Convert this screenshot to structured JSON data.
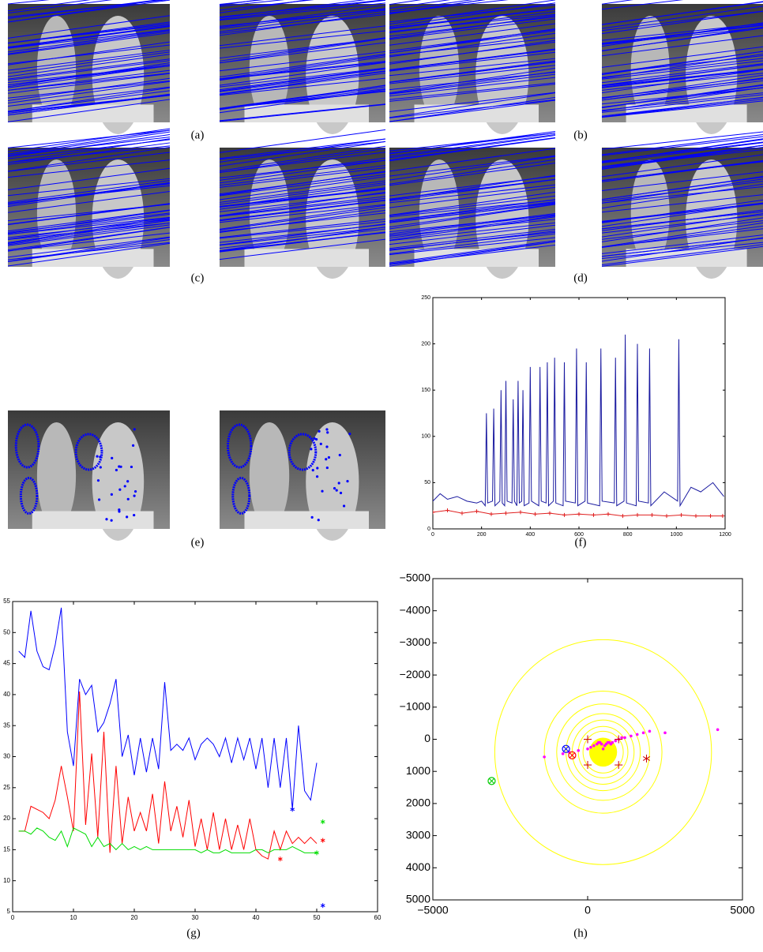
{
  "captions": [
    "(a)",
    "(b)",
    "(c)",
    "(d)",
    "(e)",
    "(f)",
    "(g)",
    "(h)"
  ],
  "chart_data": [
    {
      "type": "line",
      "xlim": [
        0,
        1200
      ],
      "xticks": [
        0,
        200,
        400,
        600,
        800,
        1000,
        1200
      ],
      "ylim": [
        0,
        250
      ],
      "yticks": [
        0,
        50,
        100,
        150,
        200,
        250
      ],
      "series": [
        {
          "color": "#1a1aa0",
          "marker": "none",
          "x": [
            0,
            30,
            60,
            100,
            140,
            180,
            200,
            215,
            220,
            225,
            245,
            250,
            255,
            275,
            280,
            285,
            295,
            300,
            305,
            325,
            330,
            335,
            345,
            350,
            355,
            365,
            370,
            375,
            395,
            400,
            405,
            435,
            440,
            445,
            465,
            470,
            475,
            495,
            500,
            505,
            535,
            540,
            545,
            585,
            590,
            595,
            625,
            630,
            635,
            685,
            690,
            695,
            745,
            750,
            755,
            785,
            790,
            795,
            835,
            840,
            845,
            885,
            890,
            895,
            950,
            1005,
            1010,
            1015,
            1060,
            1100,
            1150,
            1195
          ],
          "values": [
            30,
            38,
            32,
            35,
            30,
            28,
            30,
            25,
            125,
            28,
            30,
            130,
            25,
            30,
            150,
            28,
            25,
            160,
            30,
            28,
            140,
            30,
            25,
            160,
            28,
            30,
            150,
            25,
            28,
            175,
            30,
            25,
            175,
            30,
            28,
            180,
            25,
            30,
            185,
            28,
            25,
            180,
            30,
            28,
            195,
            25,
            30,
            180,
            28,
            25,
            195,
            30,
            28,
            185,
            25,
            30,
            210,
            28,
            25,
            200,
            30,
            28,
            195,
            25,
            40,
            30,
            205,
            25,
            45,
            40,
            50,
            35
          ]
        },
        {
          "color": "#e02020",
          "marker": "plus",
          "x": [
            0,
            60,
            120,
            180,
            240,
            300,
            360,
            420,
            480,
            540,
            600,
            660,
            720,
            780,
            840,
            900,
            960,
            1020,
            1080,
            1140,
            1190
          ],
          "values": [
            18,
            20,
            17,
            19,
            16,
            17,
            18,
            16,
            17,
            15,
            16,
            15,
            16,
            14,
            15,
            15,
            14,
            15,
            14,
            14,
            14
          ]
        }
      ]
    },
    {
      "type": "line",
      "xlim": [
        0,
        60
      ],
      "xticks": [
        0,
        10,
        20,
        30,
        40,
        50,
        60
      ],
      "ylim": [
        5,
        55
      ],
      "yticks": [
        5,
        10,
        15,
        20,
        25,
        30,
        35,
        40,
        45,
        50,
        55
      ],
      "x": [
        1,
        2,
        3,
        4,
        5,
        6,
        7,
        8,
        9,
        10,
        11,
        12,
        13,
        14,
        15,
        16,
        17,
        18,
        19,
        20,
        21,
        22,
        23,
        24,
        25,
        26,
        27,
        28,
        29,
        30,
        31,
        32,
        33,
        34,
        35,
        36,
        37,
        38,
        39,
        40,
        41,
        42,
        43,
        44,
        45,
        46,
        47,
        48,
        49,
        50
      ],
      "series": [
        {
          "color": "#0000ff",
          "values": [
            47,
            46,
            53.5,
            47,
            44.5,
            44,
            48,
            54,
            34,
            28.5,
            42.5,
            40,
            41.5,
            34,
            35.5,
            38.5,
            42.5,
            30,
            33.5,
            27,
            33,
            27.5,
            33,
            28,
            42,
            31,
            32,
            31,
            33,
            29.5,
            32,
            33,
            32,
            30,
            33,
            29,
            33,
            29.5,
            33,
            28,
            33,
            25,
            33,
            25,
            33,
            21.5,
            35,
            24.5,
            23,
            29
          ],
          "marker_x": [
            46,
            51
          ],
          "marker_values": [
            21.5,
            6
          ]
        },
        {
          "color": "#ff0000",
          "values": [
            18,
            18,
            22,
            21.5,
            21,
            20,
            23,
            28.5,
            23.5,
            18,
            40.5,
            19,
            30.5,
            17,
            34,
            14.5,
            28.5,
            16,
            23.5,
            18,
            21,
            18,
            24,
            16,
            26,
            18,
            22,
            17,
            23,
            15.5,
            20,
            15,
            21,
            15,
            20,
            15,
            19,
            15,
            20,
            15,
            14,
            13.5,
            18,
            15,
            18,
            16,
            17,
            16,
            17,
            16
          ],
          "marker_x": [
            44,
            51
          ],
          "marker_values": [
            13.5,
            16.5
          ]
        },
        {
          "color": "#00dd00",
          "values": [
            18,
            18,
            17.5,
            18.5,
            18,
            17,
            16.5,
            18,
            15.5,
            18.5,
            18,
            17.5,
            15.5,
            17,
            15.5,
            16,
            15,
            16,
            15,
            15.5,
            15,
            15.5,
            15,
            15,
            15,
            15,
            15,
            15,
            15,
            15,
            14.5,
            15,
            14.5,
            14.5,
            15,
            14.5,
            14.5,
            14.5,
            14.5,
            15,
            15,
            14.5,
            15,
            15,
            15,
            15.5,
            15,
            14.5,
            14.5,
            14.5
          ],
          "marker_x": [
            50,
            51
          ],
          "marker_values": [
            14.5,
            19.5
          ]
        }
      ]
    },
    {
      "type": "contour",
      "y_reversed": true,
      "xlim": [
        -5000,
        5000
      ],
      "xticks": [
        {
          "value": -5000,
          "label": "−5000"
        },
        0,
        5000
      ],
      "ylim": [
        -5000,
        5000
      ],
      "yticks": [
        {
          "value": -5000,
          "label": "−5000"
        },
        {
          "value": -4000,
          "label": "−4000"
        },
        {
          "value": -3000,
          "label": "−3000"
        },
        {
          "value": -2000,
          "label": "−2000"
        },
        {
          "value": -1000,
          "label": "−1000"
        },
        0,
        1000,
        2000,
        3000,
        4000,
        5000
      ],
      "contour_color": "#ffff00",
      "contour_center": [
        500,
        400
      ],
      "core_radius": 450,
      "contour_radii": [
        3500,
        1900,
        1500,
        1200,
        1000,
        800,
        650
      ],
      "points": {
        "color": "#ff00ff",
        "x": [
          -1400,
          -800,
          -600,
          -300,
          0,
          100,
          200,
          300,
          350,
          400,
          450,
          500,
          550,
          600,
          650,
          700,
          750,
          800,
          900,
          1000,
          1100,
          1200,
          1400,
          1600,
          1800,
          2000,
          2500,
          4200
        ],
        "values": [
          550,
          450,
          400,
          350,
          300,
          250,
          200,
          150,
          100,
          100,
          150,
          300,
          200,
          150,
          100,
          100,
          150,
          100,
          50,
          0,
          -50,
          -50,
          -100,
          -150,
          -200,
          -250,
          -200,
          -300
        ]
      },
      "markers": [
        {
          "shape": "circle-x",
          "color": "#0000ff",
          "x": -700,
          "y": 300
        },
        {
          "shape": "circle-x",
          "color": "#ff0000",
          "x": -500,
          "y": 500
        },
        {
          "shape": "circle-x",
          "color": "#00cc00",
          "x": -3100,
          "y": 1300
        },
        {
          "shape": "plus",
          "color": "#cc0000",
          "x": 0,
          "y": 0
        },
        {
          "shape": "plus",
          "color": "#cc0000",
          "x": 1000,
          "y": 0
        },
        {
          "shape": "plus",
          "color": "#cc0000",
          "x": 0,
          "y": 800
        },
        {
          "shape": "plus",
          "color": "#cc0000",
          "x": 1000,
          "y": 800
        },
        {
          "shape": "star",
          "color": "#cc0000",
          "x": 1900,
          "y": 600
        }
      ]
    }
  ]
}
